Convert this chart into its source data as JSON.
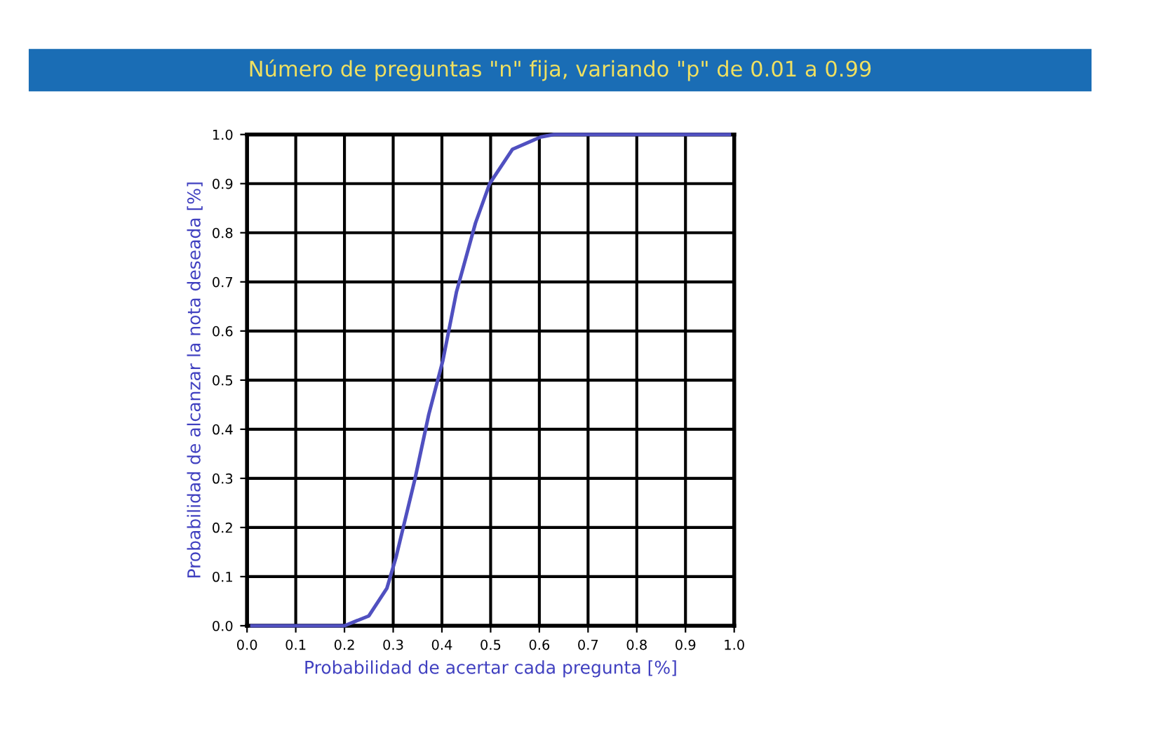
{
  "chart_data": {
    "type": "line",
    "title": "Número de preguntas \"n\" fija, variando \"p\" de 0.01 a 0.99",
    "xlabel": "Probabilidad de acertar cada pregunta [%]",
    "ylabel": "Probabilidad de alcanzar la nota deseada [%]",
    "x": [
      0.01,
      0.1,
      0.2,
      0.25,
      0.287,
      0.306,
      0.345,
      0.373,
      0.402,
      0.43,
      0.469,
      0.498,
      0.545,
      0.603,
      0.63,
      0.7,
      0.8,
      0.9,
      0.99
    ],
    "series": [
      {
        "color": "#5050c0",
        "values": [
          0,
          0,
          0,
          0.02,
          0.076,
          0.14,
          0.3,
          0.43,
          0.54,
          0.68,
          0.82,
          0.9,
          0.97,
          0.995,
          1.0,
          1.0,
          1.0,
          1.0,
          1.0
        ]
      }
    ],
    "xlim": [
      0,
      1
    ],
    "ylim": [
      0,
      1
    ],
    "xticks": [
      {
        "value": 0,
        "label": "0.0"
      },
      0.1,
      0.2,
      0.3,
      0.4,
      0.5,
      0.6,
      0.7,
      0.8,
      0.9,
      {
        "value": 1,
        "label": "1.0"
      }
    ],
    "yticks": [
      {
        "value": 0,
        "label": "0.0"
      },
      0.1,
      0.2,
      0.3,
      0.4,
      0.5,
      0.6,
      0.7,
      0.8,
      0.9,
      {
        "value": 1,
        "label": "1.0"
      }
    ],
    "grid": true,
    "marker": "none",
    "line_style": "solid"
  }
}
